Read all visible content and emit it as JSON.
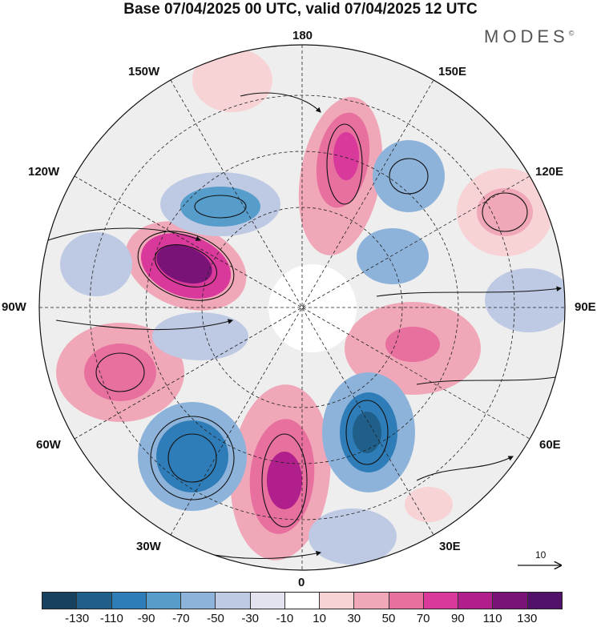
{
  "header": {
    "title": "Base 07/04/2025 00 UTC, valid 07/04/2025 12 UTC",
    "brand": "MODES",
    "brand_mark": "©"
  },
  "map": {
    "projection": "north-polar-stereographic",
    "field": "anomaly shading with wind streamlines",
    "longitude_labels": {
      "top": "180",
      "bottom": "0",
      "left": "90W",
      "right": "90E",
      "upper_left_1": "150W",
      "upper_left_2": "120W",
      "lower_left_1": "60W",
      "lower_left_2": "30W",
      "upper_right_1": "150E",
      "upper_right_2": "120E",
      "lower_right_1": "60E",
      "lower_right_2": "30E"
    },
    "reference_vector": {
      "label": "10"
    }
  },
  "colorbar": {
    "tick_labels": [
      "-130",
      "-110",
      "-90",
      "-70",
      "-50",
      "-30",
      "-10",
      "10",
      "30",
      "50",
      "70",
      "90",
      "110",
      "130"
    ],
    "colors": [
      "#17415f",
      "#1f5f8a",
      "#2f7db8",
      "#569dcc",
      "#8eb3da",
      "#bec9e3",
      "#e3e2ef",
      "#ffffff",
      "#f7d3d6",
      "#f0a8b8",
      "#e8709f",
      "#d9399a",
      "#b01f8b",
      "#7a1378",
      "#52126b"
    ]
  }
}
